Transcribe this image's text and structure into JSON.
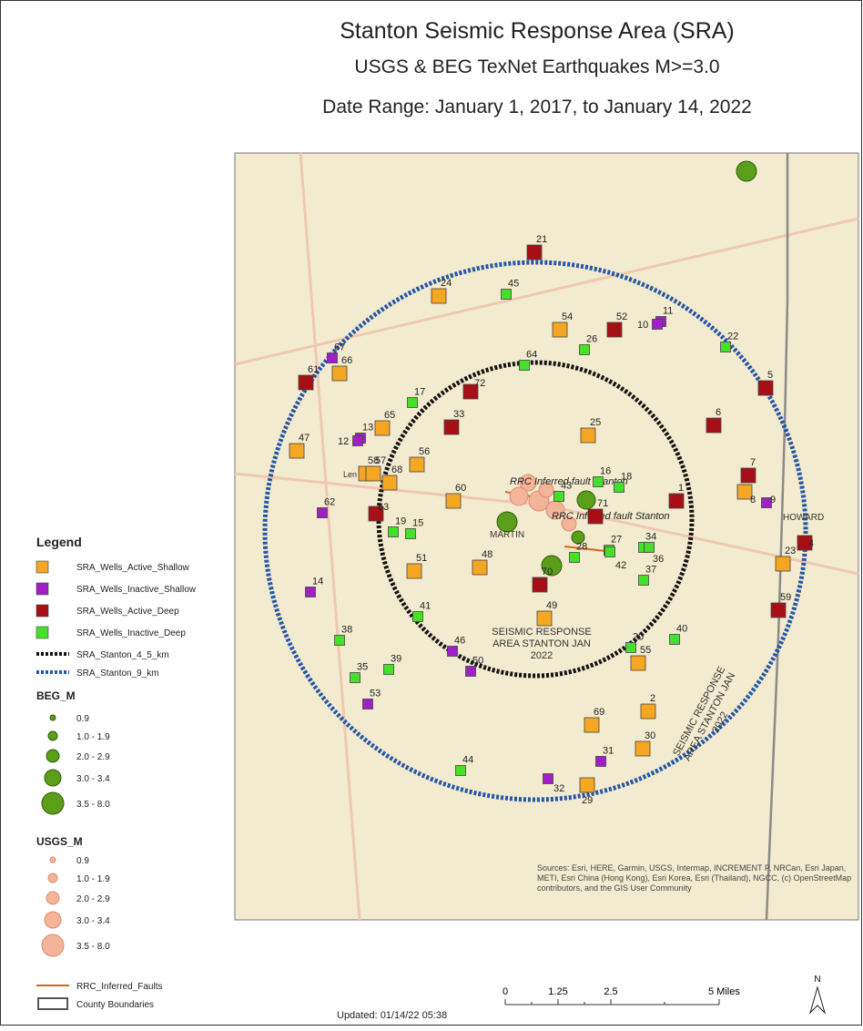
{
  "header": {
    "title": "Stanton Seismic Response Area (SRA)",
    "subtitle": "USGS & BEG TexNet Earthquakes M>=3.0",
    "date_range": "Date Range: January 1, 2017, to January 14, 2022"
  },
  "legend": {
    "title": "Legend",
    "items": [
      {
        "label": "SRA_Wells_Active_Shallow",
        "color": "#f5a623"
      },
      {
        "label": "SRA_Wells_Inactive_Shallow",
        "color": "#a020c8"
      },
      {
        "label": "SRA_Wells_Active_Deep",
        "color": "#a50f15"
      },
      {
        "label": "SRA_Wells_Inactive_Deep",
        "color": "#44e02a"
      }
    ],
    "buffers": [
      {
        "label": "SRA_Stanton_4_5_km",
        "color": "#111111"
      },
      {
        "label": "SRA_Stanton_9_km",
        "color": "#2456a8"
      }
    ],
    "beg_title": "BEG_M",
    "beg_color": "#5a9e1a",
    "beg_classes": [
      "0.9",
      "1.0 - 1.9",
      "2.0 - 2.9",
      "3.0 - 3.4",
      "3.5 - 8.0"
    ],
    "usgs_title": "USGS_M",
    "usgs_color": "#f4b49a",
    "usgs_classes": [
      "0.9",
      "1.0 - 1.9",
      "2.0 - 2.9",
      "3.0 - 3.4",
      "3.5 - 8.0"
    ],
    "faults": "RRC_Inferred_Faults",
    "faults_color": "#d2691e",
    "county": "County Boundaries"
  },
  "map": {
    "wells": [
      {
        "label": "24",
        "class": 0
      },
      {
        "label": "54",
        "class": 0
      },
      {
        "label": "66",
        "class": 0
      },
      {
        "label": "47",
        "class": 0
      },
      {
        "label": "58",
        "class": 0
      },
      {
        "label": "57",
        "class": 0
      },
      {
        "label": "56",
        "class": 0
      },
      {
        "label": "65",
        "class": 0
      },
      {
        "label": "68",
        "class": 0
      },
      {
        "label": "60",
        "class": 0
      },
      {
        "label": "25",
        "class": 0
      },
      {
        "label": "48",
        "class": 0
      },
      {
        "label": "51",
        "class": 0
      },
      {
        "label": "49",
        "class": 0
      },
      {
        "label": "8",
        "class": 0
      },
      {
        "label": "23",
        "class": 0
      },
      {
        "label": "55",
        "class": 0
      },
      {
        "label": "2",
        "class": 0
      },
      {
        "label": "69",
        "class": 0
      },
      {
        "label": "30",
        "class": 0
      },
      {
        "label": "29",
        "class": 0
      },
      {
        "label": "11",
        "class": 1
      },
      {
        "label": "10",
        "class": 1
      },
      {
        "label": "67",
        "class": 1
      },
      {
        "label": "13",
        "class": 1
      },
      {
        "label": "12",
        "class": 1
      },
      {
        "label": "62",
        "class": 1
      },
      {
        "label": "9",
        "class": 1
      },
      {
        "label": "14",
        "class": 1
      },
      {
        "label": "46",
        "class": 1
      },
      {
        "label": "50",
        "class": 1
      },
      {
        "label": "53",
        "class": 1
      },
      {
        "label": "31",
        "class": 1
      },
      {
        "label": "32",
        "class": 1
      },
      {
        "label": "21",
        "class": 2
      },
      {
        "label": "52",
        "class": 2
      },
      {
        "label": "61",
        "class": 2
      },
      {
        "label": "72",
        "class": 2
      },
      {
        "label": "33",
        "class": 2
      },
      {
        "label": "5",
        "class": 2
      },
      {
        "label": "6",
        "class": 2
      },
      {
        "label": "7",
        "class": 2
      },
      {
        "label": "1",
        "class": 2
      },
      {
        "label": "71",
        "class": 2
      },
      {
        "label": "63",
        "class": 2
      },
      {
        "label": "4",
        "class": 2
      },
      {
        "label": "70",
        "class": 2
      },
      {
        "label": "59",
        "class": 2
      },
      {
        "label": "45",
        "class": 3
      },
      {
        "label": "26",
        "class": 3
      },
      {
        "label": "22",
        "class": 3
      },
      {
        "label": "64",
        "class": 3
      },
      {
        "label": "17",
        "class": 3
      },
      {
        "label": "16",
        "class": 3
      },
      {
        "label": "18",
        "class": 3
      },
      {
        "label": "43",
        "class": 3
      },
      {
        "label": "19",
        "class": 3
      },
      {
        "label": "15",
        "class": 3
      },
      {
        "label": "27",
        "class": 3
      },
      {
        "label": "42",
        "class": 3
      },
      {
        "label": "34",
        "class": 3
      },
      {
        "label": "36",
        "class": 3
      },
      {
        "label": "28",
        "class": 3
      },
      {
        "label": "37",
        "class": 3
      },
      {
        "label": "41",
        "class": 3
      },
      {
        "label": "40",
        "class": 3
      },
      {
        "label": "20",
        "class": 3
      },
      {
        "label": "38",
        "class": 3
      },
      {
        "label": "39",
        "class": 3
      },
      {
        "label": "35",
        "class": 3
      },
      {
        "label": "44",
        "class": 3
      }
    ],
    "places": [
      "MARTIN",
      "HOWARD",
      "Len"
    ],
    "area_label": "SEISMIC RESPONSE AREA STANTON JAN 2022",
    "fault_label": "RRC Inferred fault Stanton",
    "sources": "Sources: Esri, HERE, Garmin, USGS, Intermap, INCREMENT P, NRCan, Esri Japan, METI, Esri China (Hong Kong), Esri Korea, Esri (Thailand), NGCC, (c) OpenStreetMap contributors, and the GIS User Community"
  },
  "scale_bar": {
    "ticks": [
      "0",
      "1.25",
      "2.5",
      "5 Miles"
    ],
    "north": "N"
  },
  "updated": "Updated: 01/14/22 05:38"
}
